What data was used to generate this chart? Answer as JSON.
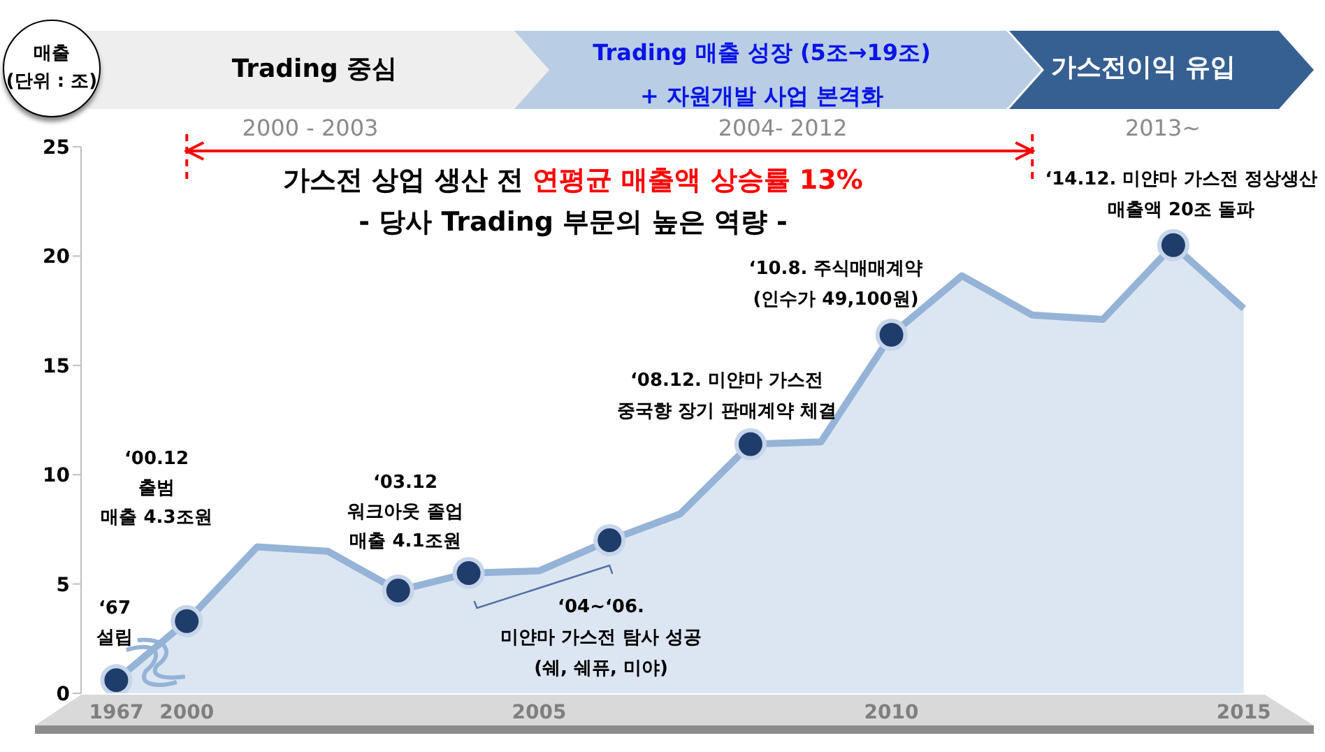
{
  "chart_data": {
    "type": "area",
    "ylabel": "매출\n(단위 : 조)",
    "categories": [
      "1967",
      "2000",
      null,
      null,
      null,
      null,
      "2005",
      null,
      null,
      null,
      null,
      "2010",
      null,
      null,
      null,
      null,
      "2015"
    ],
    "series": [
      {
        "color": "#95b3d7",
        "values": [
          0.6,
          3.3,
          6.7,
          6.5,
          4.7,
          5.5,
          5.6,
          7.0,
          8.2,
          11.4,
          11.5,
          16.4,
          19.1,
          17.3,
          17.1,
          20.5,
          17.6
        ]
      },
      {
        "type": "scatter",
        "color": "#1f3d6b",
        "marker": "circle",
        "values": [
          0.6,
          3.3,
          null,
          null,
          4.7,
          5.5,
          null,
          7.0,
          null,
          11.4,
          null,
          16.4,
          null,
          null,
          null,
          20.5,
          null
        ]
      }
    ],
    "ylim": [
      0,
      25
    ],
    "yticks": [
      0,
      5,
      10,
      15,
      20,
      25
    ],
    "annotations": [
      "‘67\n설립",
      "‘00.12\n출범\n매출 4.3조원",
      "‘03.12\n워크아웃 졸업\n매출 4.1조원",
      "‘04~‘06.\n미얀마 가스전 탐사 성공\n(쉐, 쉐퓨, 미야)",
      "‘08.12. 미얀마 가스전\n중국향 장기 판매계약 체결",
      "‘10.8. 주식매매계약\n(인수가 49,100원)",
      "‘14.12. 미얀마 가스전 정상생산\n매출액 20조 돌파",
      "가스전 상업 생산 전",
      "연평균 매출액 상승률 13%",
      "- 당사 Trading 부문의 높은 역량 -",
      "Trading 중심",
      "Trading 매출 성장 (5조→19조)\n+ 자원개발 사업 본격화",
      "가스전이익 유입",
      "2000 - 2003",
      "2004- 2012",
      "2013~"
    ]
  }
}
